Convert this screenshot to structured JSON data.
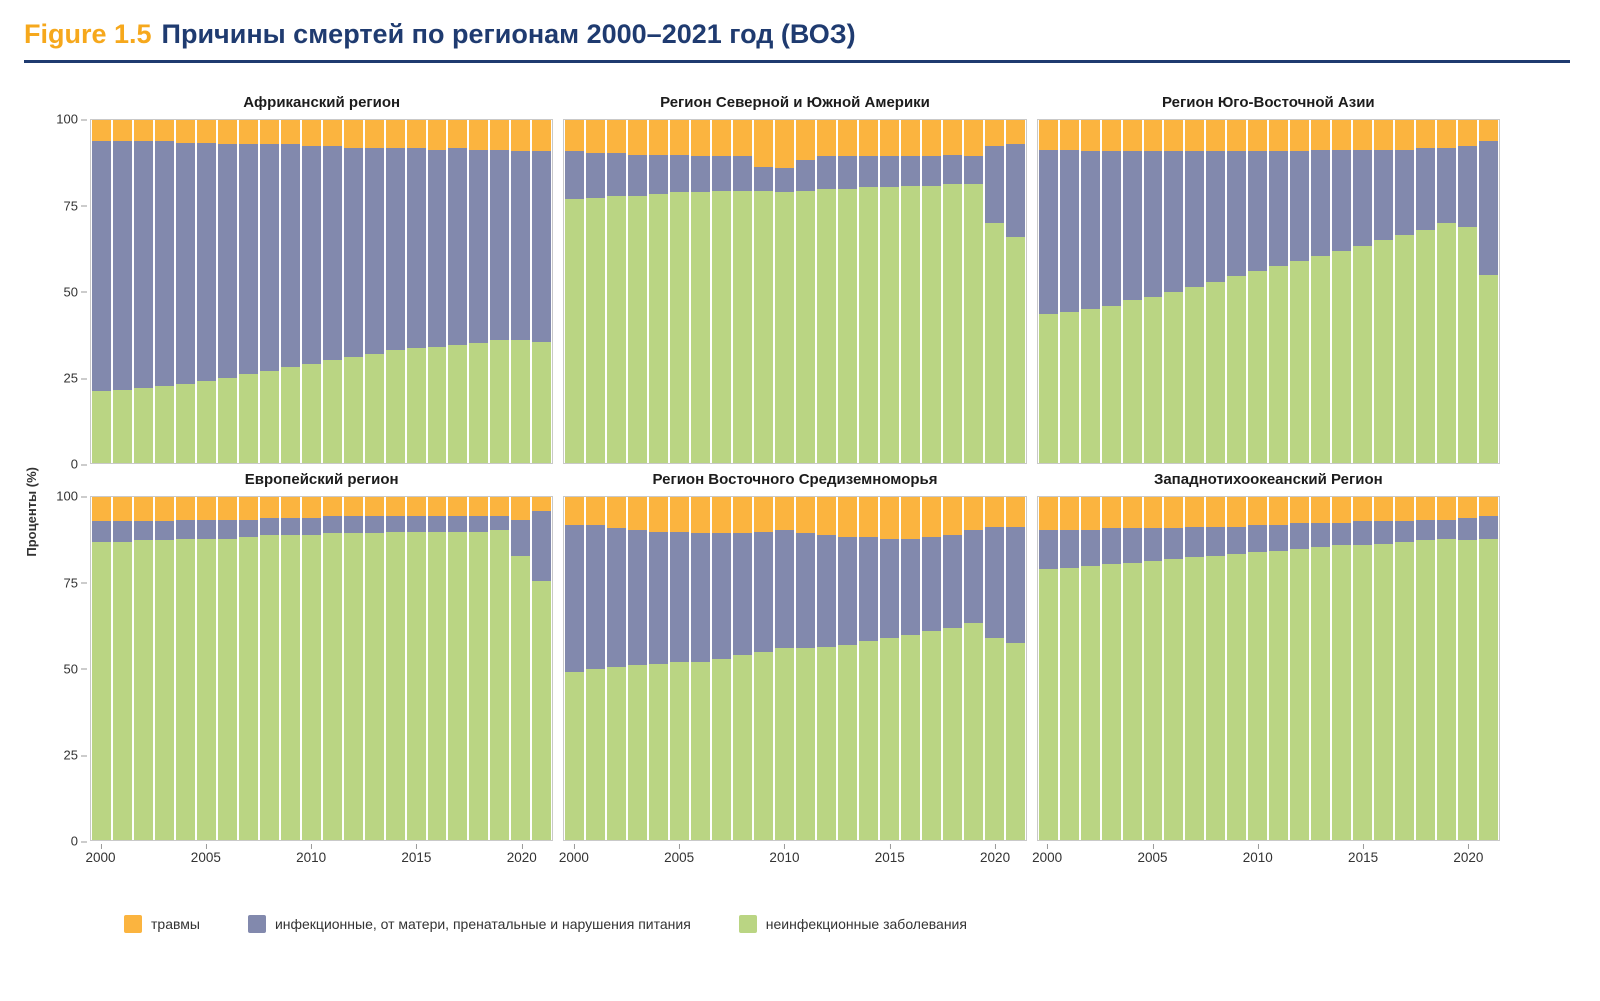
{
  "header": {
    "figure_label": "Figure 1.5",
    "title": "Причины смертей по регионам 2000–2021 год (ВОЗ)"
  },
  "axis": {
    "ylabel": "Проценты (%)",
    "yticks": [
      100,
      75,
      50,
      25,
      0
    ],
    "xticks": [
      2000,
      2005,
      2010,
      2015,
      2020
    ]
  },
  "legend": [
    {
      "label": "травмы",
      "color": "#FBB43F"
    },
    {
      "label": "инфекционные, от матери, пренатальные и нарушения питания",
      "color": "#8289AD"
    },
    {
      "label": "неинфекционные заболевания",
      "color": "#BAD583"
    }
  ],
  "chart_data": {
    "type": "bar",
    "subtype": "stacked-100-percent",
    "title": "Причины смертей по регионам 2000–2021 год (ВОЗ)",
    "ylabel": "Проценты (%)",
    "ylim": [
      0,
      100
    ],
    "x": [
      2000,
      2001,
      2002,
      2003,
      2004,
      2005,
      2006,
      2007,
      2008,
      2009,
      2010,
      2011,
      2012,
      2013,
      2014,
      2015,
      2016,
      2017,
      2018,
      2019,
      2020,
      2021
    ],
    "series_colors": {
      "injuries": "#FBB43F",
      "infectious": "#8289AD",
      "ncd": "#BAD583"
    },
    "series_labels": {
      "injuries": "травмы",
      "infectious": "инфекционные, от матери, пренатальные и нарушения питания",
      "ncd": "неинфекционные заболевания"
    },
    "panels": [
      {
        "key": "africa",
        "title": "Африканский регион",
        "series": {
          "ncd": [
            21,
            21.5,
            22,
            22.5,
            23,
            24,
            25,
            26,
            27,
            28,
            29,
            30,
            31,
            32,
            33,
            33.5,
            34,
            34.5,
            35,
            36,
            36,
            35.5
          ],
          "infectious": [
            73,
            72.5,
            72,
            71.5,
            70.5,
            69.5,
            68,
            67,
            66,
            65,
            63.5,
            62.5,
            61,
            60,
            59,
            58.5,
            57.5,
            57.5,
            56.5,
            55.5,
            55,
            55.5
          ],
          "injuries": [
            6,
            6,
            6,
            6,
            6.5,
            6.5,
            7,
            7,
            7,
            7,
            7.5,
            7.5,
            8,
            8,
            8,
            8,
            8.5,
            8,
            8.5,
            8.5,
            9,
            9
          ]
        }
      },
      {
        "key": "americas",
        "title": "Регион Северной и Южной Америки",
        "series": {
          "ncd": [
            77,
            77.5,
            78,
            78,
            78.5,
            79,
            79,
            79.5,
            79.5,
            79.5,
            79,
            79.5,
            80,
            80,
            80.5,
            80.5,
            81,
            81,
            81.5,
            81.5,
            70,
            66
          ],
          "infectious": [
            14,
            13,
            12.5,
            12,
            11.5,
            11,
            10.5,
            10,
            10,
            7,
            7,
            9,
            9.5,
            9.5,
            9,
            9,
            8.5,
            8.5,
            8.5,
            8,
            22.5,
            27
          ],
          "injuries": [
            9,
            9.5,
            9.5,
            10,
            10,
            10,
            10.5,
            10.5,
            10.5,
            13.5,
            14,
            11.5,
            10.5,
            10.5,
            10.5,
            10.5,
            10.5,
            10.5,
            10,
            10.5,
            7.5,
            7
          ]
        }
      },
      {
        "key": "south-east-asia",
        "title": "Регион Юго-Восточной Азии",
        "series": {
          "ncd": [
            43.5,
            44,
            45,
            46,
            47.5,
            48.5,
            50,
            51.5,
            53,
            54.5,
            56,
            57.5,
            59,
            60.5,
            62,
            63.5,
            65,
            66.5,
            68,
            70,
            69,
            55
          ],
          "infectious": [
            48,
            47.5,
            46,
            45,
            43.5,
            42.5,
            41,
            39.5,
            38,
            36.5,
            35,
            33.5,
            32,
            31,
            29.5,
            28,
            26.5,
            25,
            24,
            22,
            23.5,
            39
          ],
          "injuries": [
            8.5,
            8.5,
            9,
            9,
            9,
            9,
            9,
            9,
            9,
            9,
            9,
            9,
            9,
            8.5,
            8.5,
            8.5,
            8.5,
            8.5,
            8,
            8,
            7.5,
            6
          ]
        }
      },
      {
        "key": "europe",
        "title": "Европейский регион",
        "series": {
          "ncd": [
            87,
            87,
            87.5,
            87.5,
            88,
            88,
            88,
            88.5,
            89,
            89,
            89,
            89.5,
            89.5,
            89.5,
            90,
            90,
            90,
            90,
            90,
            90.5,
            83,
            75.5
          ],
          "infectious": [
            6,
            6,
            5.5,
            5.5,
            5.5,
            5.5,
            5.5,
            5,
            5,
            5,
            5,
            5,
            5,
            5,
            4.5,
            4.5,
            4.5,
            4.5,
            4.5,
            4,
            10.5,
            20.5
          ],
          "injuries": [
            7,
            7,
            7,
            7,
            6.5,
            6.5,
            6.5,
            6.5,
            6,
            6,
            6,
            5.5,
            5.5,
            5.5,
            5.5,
            5.5,
            5.5,
            5.5,
            5.5,
            5.5,
            6.5,
            4
          ]
        }
      },
      {
        "key": "eastern-mediterranean",
        "title": "Регион Восточного Средиземноморья",
        "series": {
          "ncd": [
            49,
            50,
            50.5,
            51,
            51.5,
            52,
            52,
            53,
            54,
            55,
            56,
            56,
            56.5,
            57,
            58,
            59,
            60,
            61,
            62,
            63.5,
            59,
            57.5
          ],
          "infectious": [
            43,
            42,
            40.5,
            39.5,
            38.5,
            38,
            37.5,
            36.5,
            35.5,
            35,
            34.5,
            33.5,
            32.5,
            31.5,
            30.5,
            29,
            28,
            27.5,
            27,
            27,
            32.5,
            34
          ],
          "injuries": [
            8,
            8,
            9,
            9.5,
            10,
            10,
            10.5,
            10.5,
            10.5,
            10,
            9.5,
            10.5,
            11,
            11.5,
            11.5,
            12,
            12,
            11.5,
            11,
            9.5,
            8.5,
            8.5
          ]
        }
      },
      {
        "key": "western-pacific",
        "title": "Западнотихоокеанский Регион",
        "series": {
          "ncd": [
            79,
            79.5,
            80,
            80.5,
            81,
            81.5,
            82,
            82.5,
            83,
            83.5,
            84,
            84.5,
            85,
            85.5,
            86,
            86,
            86.5,
            87,
            87.5,
            88,
            87.5,
            88
          ],
          "infectious": [
            11.5,
            11,
            10.5,
            10.5,
            10,
            9.5,
            9,
            9,
            8.5,
            8,
            8,
            7.5,
            7.5,
            7,
            6.5,
            7,
            6.5,
            6,
            6,
            5.5,
            6.5,
            6.5
          ],
          "injuries": [
            9.5,
            9.5,
            9.5,
            9,
            9,
            9,
            9,
            8.5,
            8.5,
            8.5,
            8,
            8,
            7.5,
            7.5,
            7.5,
            7,
            7,
            7,
            6.5,
            6.5,
            6,
            5.5
          ]
        }
      }
    ]
  }
}
